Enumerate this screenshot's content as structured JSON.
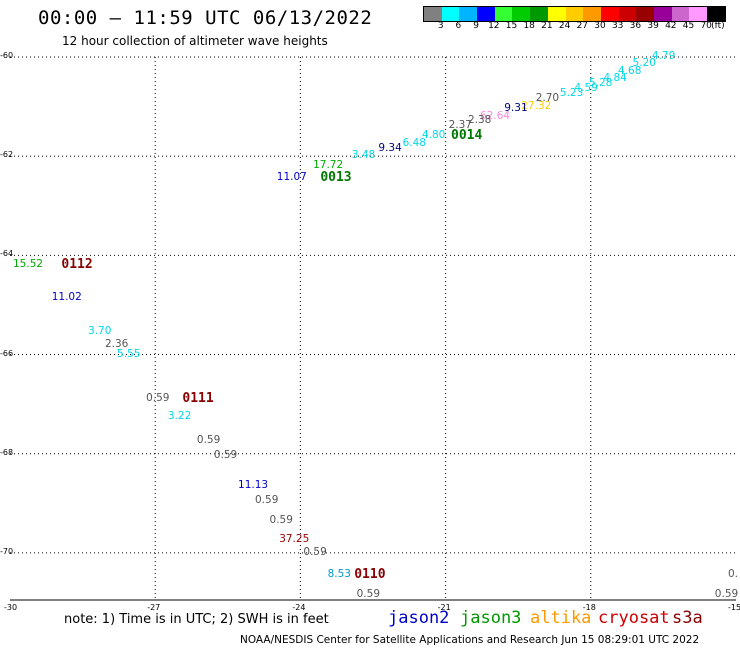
{
  "header": {
    "title": "00:00 – 11:59 UTC 06/13/2022",
    "subtitle": "12 hour collection of altimeter wave heights"
  },
  "colorbar": {
    "colors": [
      "#808080",
      "#00ffff",
      "#00b4ff",
      "#0000ff",
      "#33ff33",
      "#00cc00",
      "#009900",
      "#ffff00",
      "#ffcc00",
      "#ff9900",
      "#ff0000",
      "#cc0000",
      "#990000",
      "#990099",
      "#cc66cc",
      "#ff99ff",
      "#000000"
    ],
    "labels": [
      "3",
      "6",
      "9",
      "12",
      "15",
      "18",
      "21",
      "24",
      "27",
      "30",
      "33",
      "36",
      "39",
      "42",
      "45",
      "70"
    ],
    "unit": "(ft)"
  },
  "axes": {
    "lat_ticks": [
      "-60",
      "-62",
      "-64",
      "-66",
      "-68",
      "-70"
    ],
    "lon_ticks": [
      "-27",
      "-24",
      "-21",
      "-18",
      "-15"
    ],
    "corner_label": "-30"
  },
  "observations": [
    {
      "text": "4.79",
      "lon": -16.8,
      "lat": -60.0,
      "color": "#00d8e8"
    },
    {
      "text": "5.20",
      "lon": -17.2,
      "lat": -60.15,
      "color": "#00d8e8"
    },
    {
      "text": "4.68",
      "lon": -17.5,
      "lat": -60.3,
      "color": "#00d8e8"
    },
    {
      "text": "4.84",
      "lon": -17.8,
      "lat": -60.45,
      "color": "#00d8e8"
    },
    {
      "text": "5.28",
      "lon": -18.1,
      "lat": -60.55,
      "color": "#00d8e8"
    },
    {
      "text": "4.59",
      "lon": -18.4,
      "lat": -60.65,
      "color": "#00d8e8"
    },
    {
      "text": "5.23",
      "lon": -18.7,
      "lat": -60.75,
      "color": "#00d8e8"
    },
    {
      "text": "2.70",
      "lon": -19.2,
      "lat": -60.85,
      "color": "#555555"
    },
    {
      "text": "27.32",
      "lon": -19.5,
      "lat": -61.0,
      "color": "#ffcc00"
    },
    {
      "text": "9.31",
      "lon": -19.85,
      "lat": -61.05,
      "color": "#000080"
    },
    {
      "text": "62.64",
      "lon": -20.35,
      "lat": -61.2,
      "color": "#ff88dd"
    },
    {
      "text": "2.38",
      "lon": -20.6,
      "lat": -61.3,
      "color": "#555555"
    },
    {
      "text": "2.37",
      "lon": -21.0,
      "lat": -61.4,
      "color": "#555555"
    },
    {
      "text": "4.80",
      "lon": -21.55,
      "lat": -61.6,
      "color": "#00d8e8"
    },
    {
      "text": "6.48",
      "lon": -21.95,
      "lat": -61.75,
      "color": "#00d8e8"
    },
    {
      "text": "9.34",
      "lon": -22.45,
      "lat": -61.85,
      "color": "#000080"
    },
    {
      "text": "3.48",
      "lon": -23.0,
      "lat": -62.0,
      "color": "#00d8e8"
    },
    {
      "text": "17.72",
      "lon": -23.8,
      "lat": -62.2,
      "color": "#00aa00"
    },
    {
      "text": "11.07",
      "lon": -24.55,
      "lat": -62.45,
      "color": "#0000cc"
    },
    {
      "text": "15.52",
      "lon": -30.0,
      "lat": -64.2,
      "color": "#00aa00"
    },
    {
      "text": "11.02",
      "lon": -29.2,
      "lat": -64.85,
      "color": "#0000cc"
    },
    {
      "text": "3.70",
      "lon": -28.45,
      "lat": -65.55,
      "color": "#00d8e8"
    },
    {
      "text": "2.36",
      "lon": -28.1,
      "lat": -65.8,
      "color": "#555555"
    },
    {
      "text": "5.55",
      "lon": -27.85,
      "lat": -66.0,
      "color": "#00d8e8"
    },
    {
      "text": "0.59",
      "lon": -27.25,
      "lat": -66.9,
      "color": "#555555"
    },
    {
      "text": "3.22",
      "lon": -26.8,
      "lat": -67.25,
      "color": "#00d8e8"
    },
    {
      "text": "0.59",
      "lon": -26.2,
      "lat": -67.75,
      "color": "#555555"
    },
    {
      "text": "0.59",
      "lon": -25.85,
      "lat": -68.05,
      "color": "#555555"
    },
    {
      "text": "11.13",
      "lon": -25.35,
      "lat": -68.65,
      "color": "#0000cc"
    },
    {
      "text": "0.59",
      "lon": -25.0,
      "lat": -68.95,
      "color": "#555555"
    },
    {
      "text": "0.59",
      "lon": -24.7,
      "lat": -69.35,
      "color": "#555555"
    },
    {
      "text": "37.25",
      "lon": -24.5,
      "lat": -69.75,
      "color": "#990000"
    },
    {
      "text": "0.59",
      "lon": -24.0,
      "lat": -70.0,
      "color": "#555555"
    },
    {
      "text": "8.53",
      "lon": -23.5,
      "lat": -70.45,
      "color": "#0099cc"
    },
    {
      "text": "0.59",
      "lon": -22.9,
      "lat": -70.85,
      "color": "#555555"
    },
    {
      "text": "0.59",
      "lon": -15.5,
      "lat": -70.85,
      "color": "#555555"
    },
    {
      "text": "0.",
      "lon": -15.05,
      "lat": -70.45,
      "color": "#555555"
    }
  ],
  "pass_labels": [
    {
      "text": "0014",
      "lon": -20.95,
      "lat": -61.6,
      "color": "#007700"
    },
    {
      "text": "0013",
      "lon": -23.65,
      "lat": -62.45,
      "color": "#007700"
    },
    {
      "text": "0112",
      "lon": -29.0,
      "lat": -64.2,
      "color": "#880000"
    },
    {
      "text": "0111",
      "lon": -26.5,
      "lat": -66.9,
      "color": "#880000"
    },
    {
      "text": "0110",
      "lon": -22.95,
      "lat": -70.45,
      "color": "#880000"
    }
  ],
  "legend": {
    "note": "note:  1) Time is in UTC;  2) SWH is in feet",
    "satellites": [
      {
        "name": "jason2",
        "color": "#0000cc"
      },
      {
        "name": "jason3",
        "color": "#009900"
      },
      {
        "name": "altika",
        "color": "#ff9900"
      },
      {
        "name": "cryosat",
        "color": "#cc0000"
      },
      {
        "name": "s3a",
        "color": "#880000"
      }
    ]
  },
  "footer": "NOAA/NESDIS Center for Satellite Applications and Research    Jun 15 08:29:01 UTC 2022"
}
